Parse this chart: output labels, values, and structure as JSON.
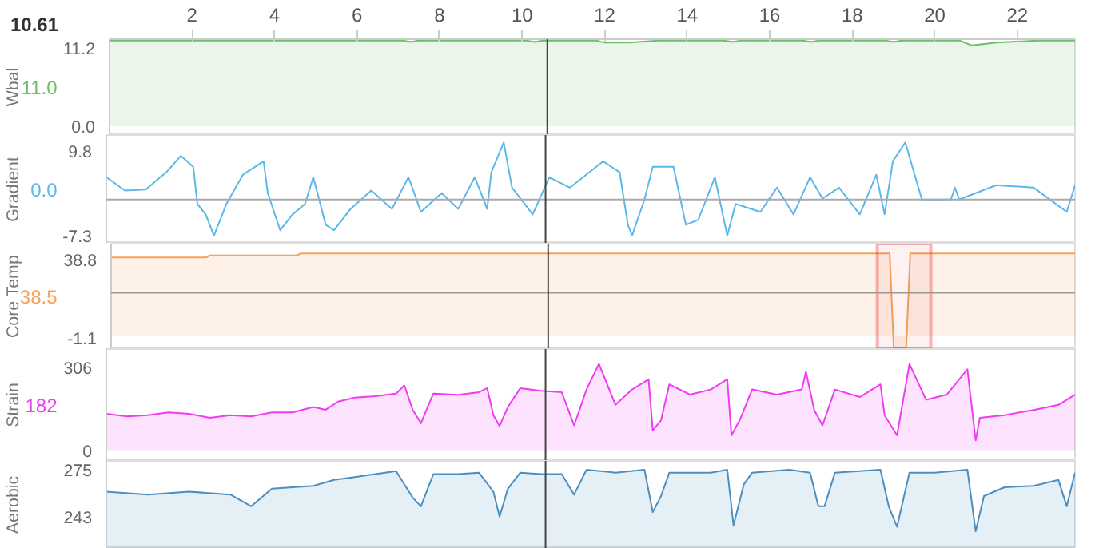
{
  "chart_data": [
    {
      "type": "area",
      "ylabel": "Wbal",
      "color": "#6abf69",
      "xlim": [
        0,
        23.4
      ],
      "ylim": [
        -1.3,
        12.5
      ],
      "yticks": [
        {
          "value": 0,
          "label": "0.0"
        },
        11.2
      ],
      "xticks": [
        2,
        4,
        6,
        8,
        10,
        12,
        14,
        16,
        18,
        20,
        22
      ],
      "x": [
        0,
        2,
        4,
        6,
        7.1,
        7.3,
        7.5,
        9,
        10.1,
        10.3,
        10.5,
        11.8,
        12.0,
        12.6,
        13.3,
        14.9,
        15.1,
        15.3,
        16.8,
        17.0,
        17.2,
        18.8,
        19.0,
        19.2,
        20.6,
        20.9,
        21.5,
        22.5,
        23.4
      ],
      "values": [
        12.3,
        12.3,
        12.3,
        12.3,
        12.3,
        12.1,
        12.3,
        12.3,
        12.3,
        12.1,
        12.3,
        12.3,
        12.0,
        12.0,
        12.3,
        12.3,
        12.1,
        12.3,
        12.3,
        12.1,
        12.3,
        12.3,
        12.1,
        12.3,
        12.3,
        11.6,
        12.0,
        12.3,
        12.3
      ],
      "annotations": [
        "11.0"
      ],
      "ref_lines": [
        {
          "axis": "x",
          "value": 10.61,
          "label": "10.61",
          "color": "#444444"
        }
      ]
    },
    {
      "type": "line",
      "ylabel": "Gradient",
      "color": "#5bb8e8",
      "xlim": [
        0,
        23.4
      ],
      "ylim": [
        -8.9,
        13.0
      ],
      "yticks": [
        -7.3,
        9.8
      ],
      "tick_labels": "y",
      "x": [
        0,
        0.45,
        0.95,
        1.45,
        1.8,
        2.1,
        2.2,
        2.4,
        2.6,
        2.9,
        3.3,
        3.8,
        3.9,
        4.2,
        4.5,
        4.8,
        5.0,
        5.3,
        5.5,
        5.9,
        6.4,
        6.9,
        7.3,
        7.6,
        8.1,
        8.5,
        8.9,
        9.2,
        9.3,
        9.6,
        9.8,
        10.3,
        10.7,
        11.2,
        12.0,
        12.4,
        12.6,
        12.7,
        13.0,
        13.2,
        13.7,
        14.0,
        14.3,
        14.7,
        15.0,
        15.2,
        15.8,
        16.2,
        16.6,
        17.0,
        17.3,
        17.7,
        18.2,
        18.6,
        18.8,
        19.0,
        19.3,
        19.7,
        20.4,
        20.5,
        20.6,
        21.5,
        22.4,
        23.2,
        23.4
      ],
      "values": [
        4.5,
        1.8,
        2,
        5.5,
        8.8,
        6.6,
        -0.9,
        -3,
        -7.3,
        -0.9,
        5,
        7.7,
        1.3,
        -6.2,
        -3,
        -0.9,
        4.5,
        -5.1,
        -6.2,
        -1.9,
        1.8,
        -1.9,
        4.5,
        -2.5,
        1.3,
        -1.9,
        4.5,
        -1.9,
        5.5,
        11.5,
        2.4,
        -3,
        4.5,
        2.4,
        7.7,
        5.5,
        -5.1,
        -7.3,
        0,
        6.6,
        6.6,
        -5.1,
        -4.1,
        4.5,
        -7.3,
        -0.9,
        -2.5,
        2.4,
        -3,
        4.5,
        0.2,
        2.4,
        -3,
        5,
        -3,
        7.7,
        11.5,
        0,
        0,
        2.4,
        0,
        2.9,
        2.4,
        -2.5,
        2.9
      ],
      "annotations": [
        "0.0"
      ],
      "ref_lines": [
        {
          "axis": "y",
          "value": 0,
          "color": "#aaaaaa"
        },
        {
          "axis": "x",
          "value": 10.61,
          "color": "#444444"
        }
      ]
    },
    {
      "type": "area",
      "ylabel": "Core Temp",
      "color": "#f5a35a",
      "xlim": [
        0,
        23.4
      ],
      "ylim": [
        -6.6,
        47
      ],
      "yticks": [
        -1.1,
        38.8
      ],
      "tick_labels": "y",
      "x": [
        0,
        2.3,
        2.4,
        4.5,
        4.6,
        7.2,
        7.3,
        18.9,
        19.0,
        19.3,
        19.4,
        23.4
      ],
      "values": [
        40,
        40,
        41,
        41,
        42,
        42,
        42,
        42,
        -6,
        -6,
        42,
        42
      ],
      "annotations": [
        "38.5"
      ],
      "ref_lines": [
        {
          "axis": "y",
          "value": 22,
          "color": "#999999"
        },
        {
          "axis": "x",
          "value": 10.61,
          "color": "#444444"
        }
      ],
      "bands": [
        {
          "axis": "x",
          "from": 18.6,
          "to": 19.9,
          "color": "#dd1111"
        }
      ]
    },
    {
      "type": "area",
      "ylabel": "Strain",
      "color": "#f03cf0",
      "xlim": [
        0,
        23.4
      ],
      "ylim": [
        -40,
        375
      ],
      "yticks": [
        0,
        306
      ],
      "tick_labels": "y",
      "x": [
        0,
        0.5,
        1,
        1.5,
        2,
        2.5,
        3,
        3.5,
        4,
        4.5,
        5,
        5.3,
        5.6,
        6,
        6.5,
        7,
        7.2,
        7.4,
        7.6,
        7.9,
        8.5,
        9,
        9.2,
        9.35,
        9.5,
        9.7,
        10,
        10.5,
        11,
        11.3,
        11.6,
        11.9,
        12.3,
        12.7,
        13.1,
        13.2,
        13.4,
        13.6,
        14.1,
        14.6,
        15,
        15.1,
        15.3,
        15.6,
        16.2,
        16.8,
        16.9,
        17.1,
        17.3,
        17.6,
        18.2,
        18.7,
        18.8,
        19.1,
        19.4,
        19.8,
        20.3,
        20.8,
        21,
        21.1,
        21.7,
        22.4,
        23,
        23.4
      ],
      "values": [
        135,
        125,
        130,
        140,
        135,
        120,
        130,
        125,
        140,
        140,
        160,
        150,
        180,
        195,
        200,
        210,
        240,
        150,
        100,
        210,
        205,
        215,
        230,
        130,
        90,
        160,
        230,
        220,
        215,
        92,
        225,
        320,
        168,
        225,
        263,
        73,
        111,
        244,
        206,
        225,
        263,
        55,
        111,
        225,
        206,
        225,
        291,
        149,
        92,
        225,
        197,
        244,
        130,
        55,
        320,
        187,
        206,
        300,
        36,
        120,
        130,
        149,
        168,
        206
      ],
      "annotations": [
        "182"
      ],
      "ref_lines": [
        {
          "axis": "x",
          "value": 10.61,
          "color": "#444444"
        }
      ]
    },
    {
      "type": "area",
      "ylabel": "Aerobic",
      "color": "#4a8fc0",
      "xlim": [
        0,
        23.4
      ],
      "ylim": [
        221,
        281
      ],
      "yticks": [
        243,
        275
      ],
      "tick_labels": "y",
      "x": [
        0,
        1,
        2,
        3,
        3.5,
        4,
        5,
        5.5,
        6,
        6.5,
        7,
        7.4,
        7.6,
        7.9,
        8.5,
        9,
        9.35,
        9.5,
        9.7,
        10,
        10.5,
        11,
        11.3,
        11.6,
        12.3,
        13,
        13.2,
        13.4,
        13.6,
        14.6,
        15,
        15.15,
        15.4,
        15.6,
        16.5,
        17,
        17.2,
        17.35,
        17.6,
        18.7,
        18.9,
        19.1,
        19.4,
        20,
        20.8,
        21,
        21.2,
        21.7,
        22.4,
        23,
        23.2,
        23.4
      ],
      "values": [
        260,
        258,
        260,
        258,
        250,
        262,
        264,
        268,
        270,
        272,
        274,
        256,
        250,
        272,
        272,
        273,
        260,
        243,
        262,
        273,
        272,
        272,
        258,
        275,
        273,
        275,
        246,
        257,
        273,
        273,
        275,
        237,
        265,
        273,
        275,
        273,
        250,
        250,
        273,
        275,
        250,
        236,
        273,
        273,
        275,
        233,
        257,
        263,
        264,
        268,
        250,
        273
      ],
      "ref_lines": [
        {
          "axis": "x",
          "value": 10.61,
          "color": "#444444"
        }
      ]
    }
  ]
}
